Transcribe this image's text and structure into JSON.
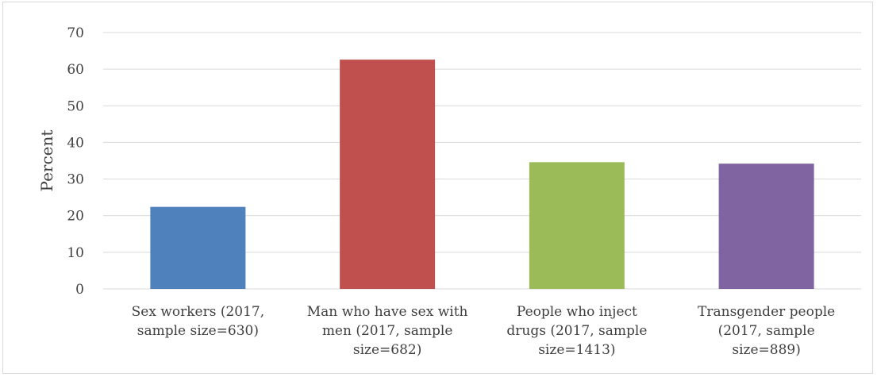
{
  "chart_data": {
    "type": "bar",
    "title": "",
    "xlabel": "",
    "ylabel": "Percent",
    "ylim": [
      0,
      70
    ],
    "yticks": [
      0,
      10,
      20,
      30,
      40,
      50,
      60,
      70
    ],
    "grid": true,
    "legend": "none",
    "categories": [
      [
        "Sex workers (2017,",
        "sample size=630)"
      ],
      [
        "Man who have sex with",
        "men (2017, sample",
        "size=682)"
      ],
      [
        "People who inject",
        "drugs (2017, sample",
        "size=1413)"
      ],
      [
        "Transgender people",
        "(2017, sample",
        "size=889)"
      ]
    ],
    "values": [
      22.4,
      62.6,
      34.6,
      34.2
    ],
    "colors": [
      "#4f81bd",
      "#c0504d",
      "#9bbb59",
      "#8064a2"
    ]
  }
}
